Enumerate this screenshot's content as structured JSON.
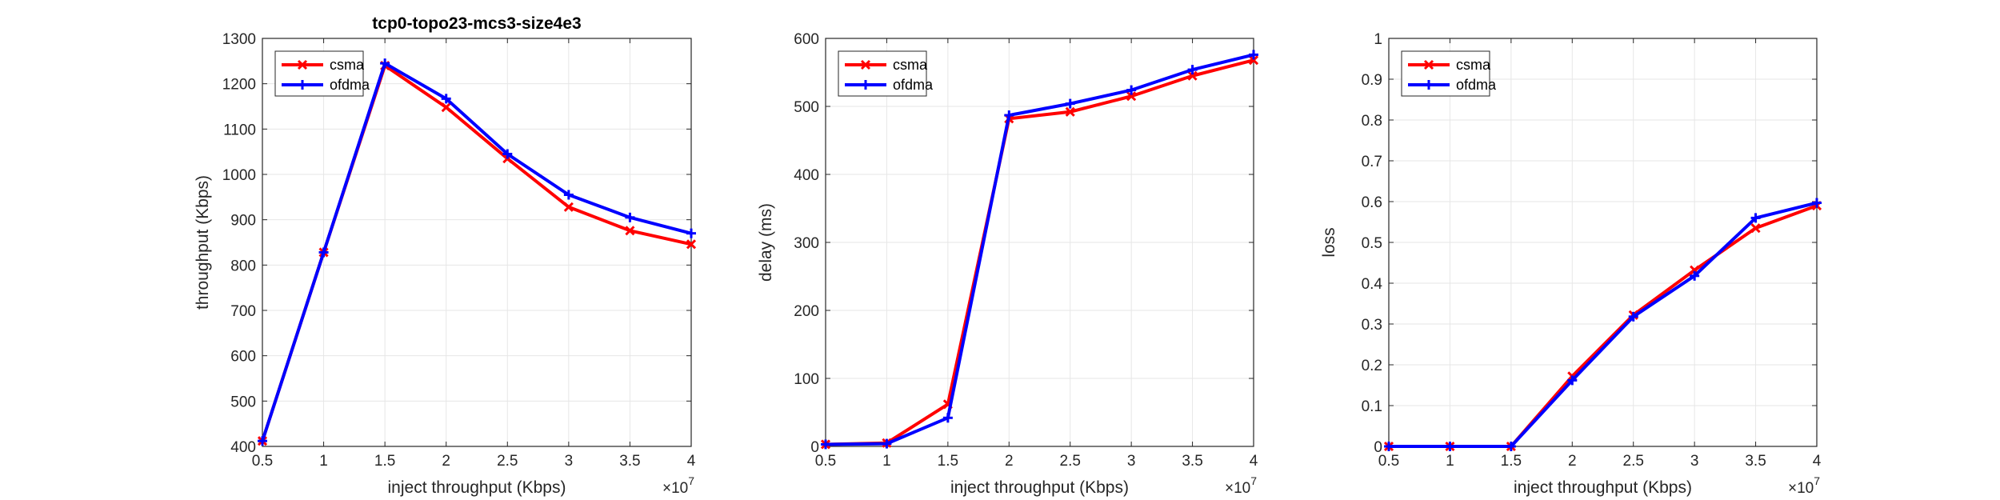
{
  "chart_data": [
    {
      "type": "line",
      "title": "tcp0-topo23-mcs3-size4e3",
      "xlabel": "inject throughput (Kbps)",
      "ylabel": "throughput (Kbps)",
      "x_exponent_label": "×10",
      "x_exponent": "7",
      "x": [
        0.5,
        1,
        1.5,
        2,
        2.5,
        3,
        3.5,
        4
      ],
      "xlim": [
        0.5,
        4
      ],
      "ylim": [
        400,
        1300
      ],
      "xticks": [
        "0.5",
        "1",
        "1.5",
        "2",
        "2.5",
        "3",
        "3.5",
        "4"
      ],
      "yticks": [
        "400",
        "500",
        "600",
        "700",
        "800",
        "900",
        "1000",
        "1100",
        "1200",
        "1300"
      ],
      "grid": true,
      "legend_position": "top-left",
      "series": [
        {
          "name": "csma",
          "color": "#ff0000",
          "marker": "x",
          "values": [
            412,
            828,
            1240,
            1148,
            1035,
            928,
            876,
            846
          ]
        },
        {
          "name": "ofdma",
          "color": "#0000ff",
          "marker": "+",
          "values": [
            412,
            828,
            1245,
            1167,
            1045,
            955,
            905,
            870
          ]
        }
      ]
    },
    {
      "type": "line",
      "title": "",
      "xlabel": "inject throughput (Kbps)",
      "ylabel": "delay (ms)",
      "x_exponent_label": "×10",
      "x_exponent": "7",
      "x": [
        0.5,
        1,
        1.5,
        2,
        2.5,
        3,
        3.5,
        4
      ],
      "xlim": [
        0.5,
        4
      ],
      "ylim": [
        0,
        600
      ],
      "xticks": [
        "0.5",
        "1",
        "1.5",
        "2",
        "2.5",
        "3",
        "3.5",
        "4"
      ],
      "yticks": [
        "0",
        "100",
        "200",
        "300",
        "400",
        "500",
        "600"
      ],
      "grid": true,
      "legend_position": "top-left",
      "series": [
        {
          "name": "csma",
          "color": "#ff0000",
          "marker": "x",
          "values": [
            3,
            5,
            62,
            482,
            492,
            515,
            545,
            568
          ]
        },
        {
          "name": "ofdma",
          "color": "#0000ff",
          "marker": "+",
          "values": [
            3,
            4,
            42,
            487,
            504,
            524,
            554,
            576
          ]
        }
      ]
    },
    {
      "type": "line",
      "title": "",
      "xlabel": "inject throughput (Kbps)",
      "ylabel": "loss",
      "x_exponent_label": "×10",
      "x_exponent": "7",
      "x": [
        0.5,
        1,
        1.5,
        2,
        2.5,
        3,
        3.5,
        4
      ],
      "xlim": [
        0.5,
        4
      ],
      "ylim": [
        0,
        1
      ],
      "xticks": [
        "0.5",
        "1",
        "1.5",
        "2",
        "2.5",
        "3",
        "3.5",
        "4"
      ],
      "yticks": [
        "0",
        "0.1",
        "0.2",
        "0.3",
        "0.4",
        "0.5",
        "0.6",
        "0.7",
        "0.8",
        "0.9",
        "1"
      ],
      "grid": true,
      "legend_position": "top-left",
      "series": [
        {
          "name": "csma",
          "color": "#ff0000",
          "marker": "x",
          "values": [
            0,
            0,
            0,
            0.172,
            0.322,
            0.432,
            0.535,
            0.59
          ]
        },
        {
          "name": "ofdma",
          "color": "#0000ff",
          "marker": "+",
          "values": [
            0,
            0,
            0,
            0.162,
            0.318,
            0.418,
            0.56,
            0.597
          ]
        }
      ]
    }
  ]
}
